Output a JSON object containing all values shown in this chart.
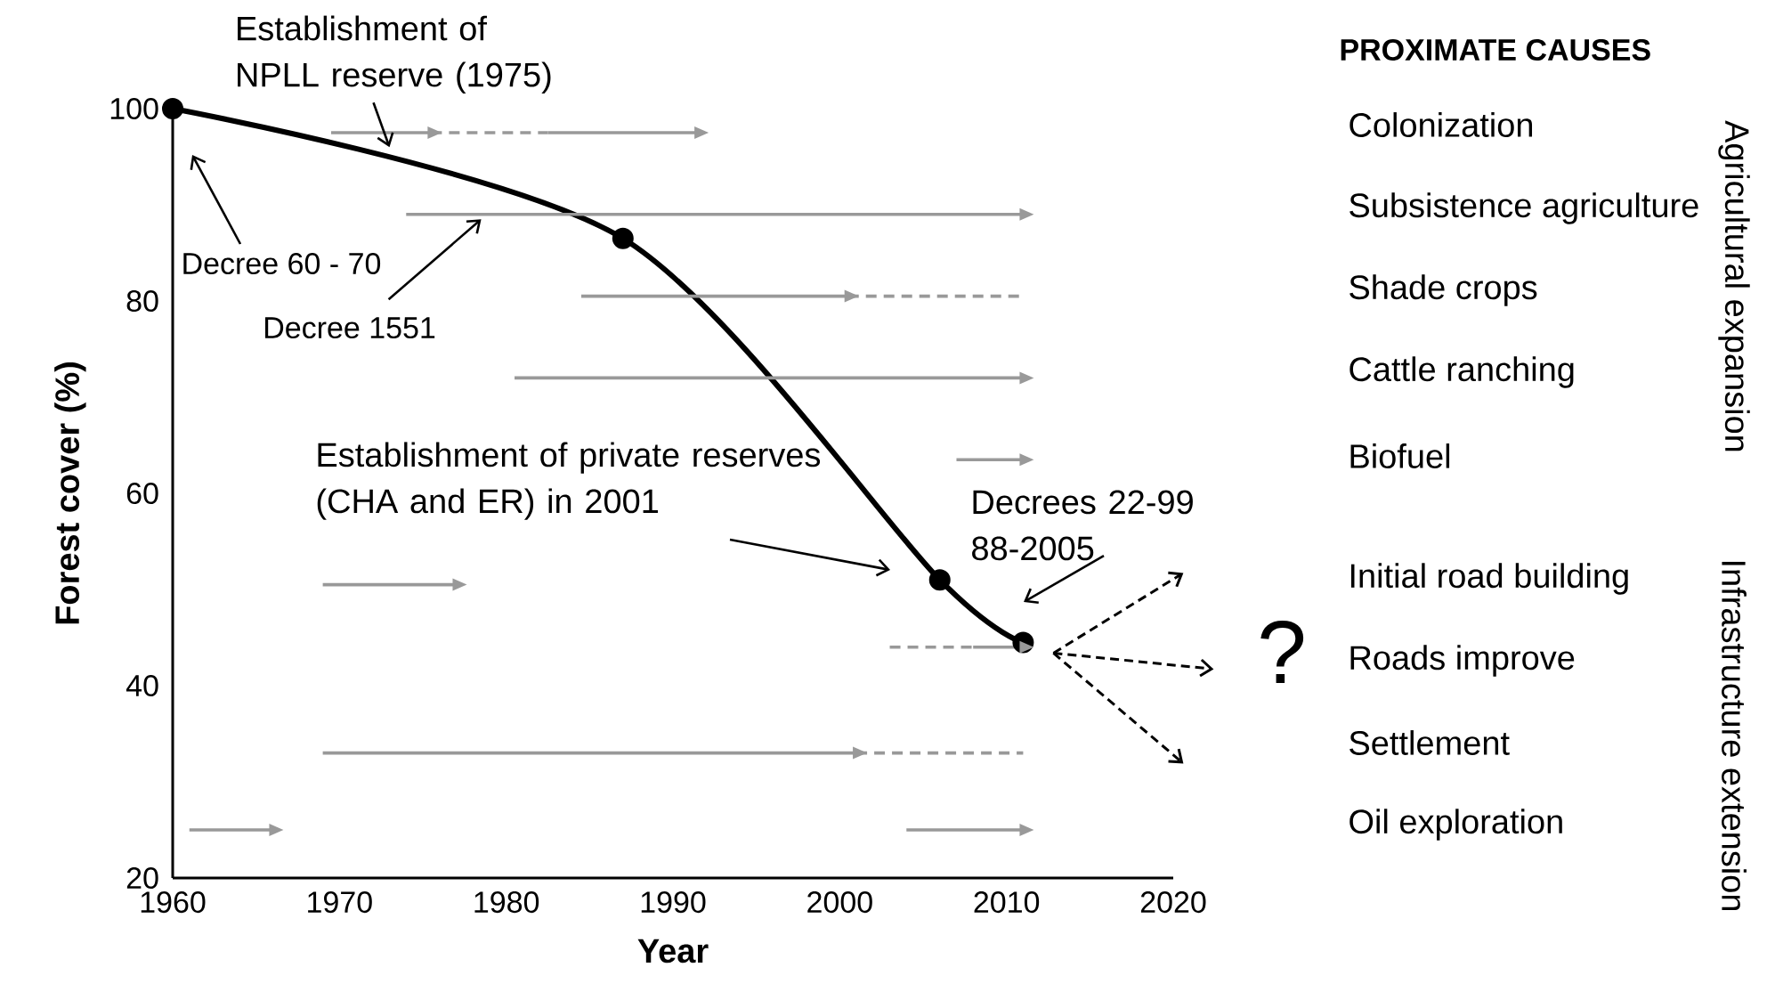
{
  "chart_data": {
    "type": "line",
    "xlabel": "Year",
    "ylabel": "Forest cover (%)",
    "xlim": [
      1960,
      2020
    ],
    "ylim": [
      20,
      100
    ],
    "xticks": [
      1960,
      1970,
      1980,
      1990,
      2000,
      2010,
      2020
    ],
    "yticks": [
      20,
      40,
      60,
      80,
      100
    ],
    "line_style": "solid",
    "series": [
      {
        "color": "#000000",
        "marker": "circle",
        "x": [
          1960,
          1987,
          2006,
          2011
        ],
        "values": [
          100,
          86.5,
          51,
          44.5
        ]
      },
      {
        "color": "#999999",
        "x": [
          1969.5,
          1975.5
        ],
        "values": [
          97.5,
          97.5
        ]
      },
      {
        "color": "#999999",
        "line_style": "dashed",
        "x": [
          1975.5,
          1982.5
        ],
        "values": [
          97.5,
          97.5
        ]
      },
      {
        "color": "#999999",
        "x": [
          1982.5,
          1991.5
        ],
        "values": [
          97.5,
          97.5
        ]
      },
      {
        "color": "#999999",
        "x": [
          1974,
          2011
        ],
        "values": [
          89,
          89
        ]
      },
      {
        "color": "#999999",
        "x": [
          1984.5,
          2000.5
        ],
        "values": [
          80.5,
          80.5
        ]
      },
      {
        "color": "#999999",
        "line_style": "dashed",
        "x": [
          2000.5,
          2011
        ],
        "values": [
          80.5,
          80.5
        ]
      },
      {
        "color": "#999999",
        "x": [
          1980.5,
          2011
        ],
        "values": [
          72,
          72
        ]
      },
      {
        "color": "#999999",
        "x": [
          2007,
          2011
        ],
        "values": [
          63.5,
          63.5
        ]
      },
      {
        "color": "#999999",
        "x": [
          1969,
          1977
        ],
        "values": [
          50.5,
          50.5
        ]
      },
      {
        "color": "#999999",
        "line_style": "dashed",
        "x": [
          2003,
          2008
        ],
        "values": [
          44,
          44
        ]
      },
      {
        "color": "#999999",
        "x": [
          2008,
          2011
        ],
        "values": [
          44,
          44
        ]
      },
      {
        "color": "#999999",
        "x": [
          1969,
          2001
        ],
        "values": [
          33,
          33
        ]
      },
      {
        "color": "#999999",
        "line_style": "dashed",
        "x": [
          2001,
          2011
        ],
        "values": [
          33,
          33
        ]
      },
      {
        "color": "#999999",
        "x": [
          1961,
          1966
        ],
        "values": [
          25,
          25
        ]
      },
      {
        "color": "#999999",
        "x": [
          2004,
          2011
        ],
        "values": [
          25,
          25
        ]
      }
    ],
    "annotations": [
      {
        "text": "Establishment of NPLL reserve (1975)",
        "x": 1973,
        "y": 96
      },
      "Decree 60 - 70",
      {
        "text": "Decree 1551",
        "x": 1978.5,
        "y": 88.5
      },
      "Establishment of private reserves (CHA and ER) in 2001",
      "Decrees 22-99 88-2005",
      "?",
      "PROXIMATE CAUSES",
      "Colonization",
      "Subsistence agriculture",
      "Shade crops",
      "Cattle ranching",
      "Biofuel",
      "Initial road building",
      "Roads improve",
      "Settlement",
      "Oil exploration",
      "Agricultural expansion",
      "Infrastructure extension"
    ]
  }
}
